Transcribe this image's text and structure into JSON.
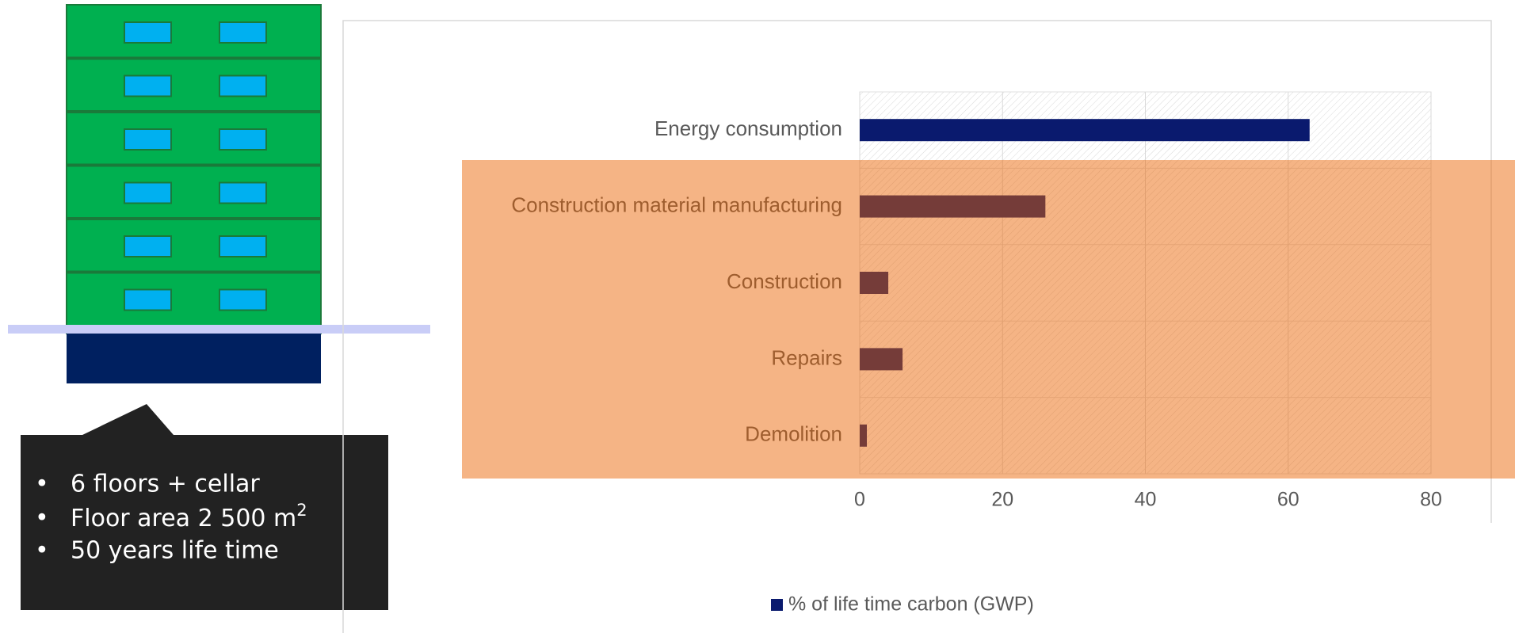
{
  "callout": {
    "items": [
      "6 floors + cellar",
      {
        "text": "Floor area 2 500 m",
        "sup": "2"
      },
      "50 years life time"
    ]
  },
  "chart_data": {
    "type": "bar",
    "orientation": "horizontal",
    "categories": [
      "Energy consumption",
      "Construction material manufacturing",
      "Construction",
      "Repairs",
      "Demolition"
    ],
    "series": [
      {
        "name": "% of life time carbon (GWP)",
        "color": "#0a1a6e",
        "values": [
          63,
          26,
          4,
          6,
          1
        ]
      }
    ],
    "xlim": [
      0,
      80
    ],
    "xticks": [
      0,
      20,
      40,
      60,
      80
    ],
    "grid": true,
    "legend": "bottom"
  }
}
